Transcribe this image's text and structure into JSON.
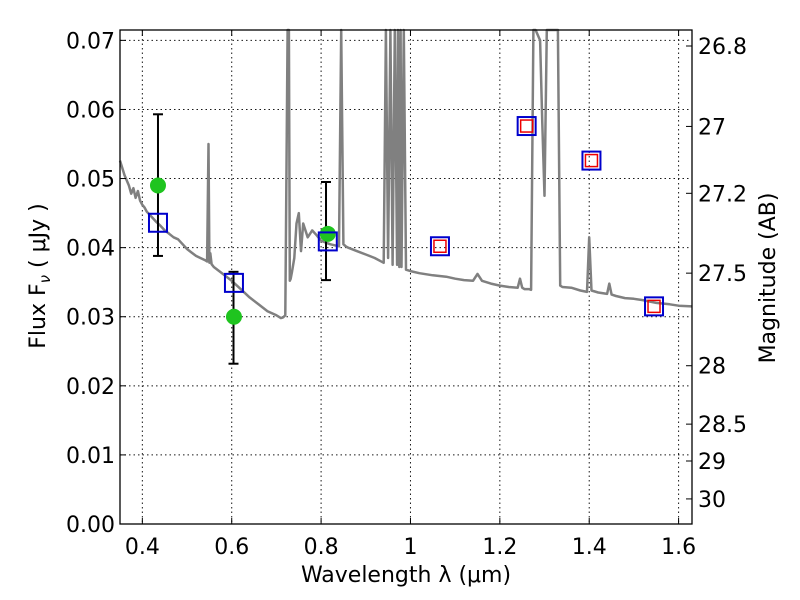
{
  "chart_data": {
    "type": "line",
    "xlabel": "Wavelength  λ (μm)",
    "ylabel": "Flux  F",
    "ylabel_sub": "ν",
    "ylabel_unit": " ( μJy )",
    "y2label": "Magnitude (AB)",
    "xlim": [
      0.35,
      1.63
    ],
    "ylim": [
      0.0,
      0.0715
    ],
    "grid": true,
    "x_ticks": [
      0.4,
      0.6,
      0.8,
      1.0,
      1.2,
      1.4,
      1.6
    ],
    "x_tick_labels": [
      "0.4",
      "0.6",
      "0.8",
      "1",
      "1.2",
      "1.4",
      "1.6"
    ],
    "y_ticks": [
      0.0,
      0.01,
      0.02,
      0.03,
      0.04,
      0.05,
      0.06,
      0.07
    ],
    "y_tick_labels": [
      "0.00",
      "0.01",
      "0.02",
      "0.03",
      "0.04",
      "0.05",
      "0.06",
      "0.07"
    ],
    "y2_tick_labels": [
      "26.8",
      "27",
      "27.2",
      "27.5",
      "28",
      "28.5",
      "29",
      "30"
    ],
    "y2_tick_magnitudes": [
      26.8,
      27.0,
      27.2,
      27.5,
      28.0,
      28.5,
      29.0,
      30.0
    ],
    "series": [
      {
        "kind": "spectrum",
        "color": "#808080",
        "x": [
          0.35,
          0.36,
          0.37,
          0.375,
          0.38,
          0.385,
          0.39,
          0.395,
          0.4,
          0.405,
          0.41,
          0.42,
          0.43,
          0.44,
          0.45,
          0.46,
          0.47,
          0.48,
          0.49,
          0.5,
          0.51,
          0.52,
          0.53,
          0.54,
          0.545,
          0.548,
          0.55,
          0.552,
          0.555,
          0.56,
          0.58,
          0.6,
          0.62,
          0.64,
          0.66,
          0.68,
          0.7,
          0.71,
          0.715,
          0.72,
          0.725,
          0.728,
          0.73,
          0.732,
          0.735,
          0.74,
          0.745,
          0.75,
          0.755,
          0.76,
          0.77,
          0.78,
          0.79,
          0.8,
          0.82,
          0.84,
          0.845,
          0.85,
          0.855,
          0.86,
          0.88,
          0.9,
          0.92,
          0.94,
          0.945,
          0.95,
          0.955,
          0.96,
          0.965,
          0.97,
          0.972,
          0.975,
          0.978,
          0.98,
          0.985,
          0.99,
          1.0,
          1.02,
          1.05,
          1.08,
          1.1,
          1.12,
          1.14,
          1.15,
          1.16,
          1.18,
          1.2,
          1.22,
          1.24,
          1.245,
          1.25,
          1.255,
          1.26,
          1.265,
          1.27,
          1.275,
          1.28,
          1.29,
          1.295,
          1.3,
          1.305,
          1.31,
          1.32,
          1.33,
          1.335,
          1.34,
          1.36,
          1.38,
          1.395,
          1.4,
          1.405,
          1.42,
          1.44,
          1.445,
          1.45,
          1.46,
          1.48,
          1.5,
          1.52,
          1.55,
          1.58,
          1.6,
          1.63
        ],
        "y": [
          0.0526,
          0.0505,
          0.049,
          0.0478,
          0.0486,
          0.0472,
          0.0482,
          0.0468,
          0.0462,
          0.0458,
          0.0452,
          0.0445,
          0.0438,
          0.0432,
          0.0425,
          0.042,
          0.0415,
          0.0412,
          0.0405,
          0.0398,
          0.0393,
          0.0388,
          0.0385,
          0.0382,
          0.038,
          0.055,
          0.0378,
          0.0392,
          0.0376,
          0.0372,
          0.0362,
          0.0352,
          0.034,
          0.0328,
          0.0318,
          0.0308,
          0.0302,
          0.0298,
          0.0299,
          0.0302,
          0.0715,
          0.0715,
          0.0352,
          0.0355,
          0.0365,
          0.0385,
          0.0435,
          0.045,
          0.0395,
          0.0435,
          0.0415,
          0.0425,
          0.0418,
          0.041,
          0.0405,
          0.0402,
          0.0715,
          0.0405,
          0.0402,
          0.04,
          0.0395,
          0.039,
          0.0385,
          0.0378,
          0.0715,
          0.0385,
          0.0715,
          0.0375,
          0.0715,
          0.0375,
          0.0715,
          0.0372,
          0.0715,
          0.0372,
          0.0715,
          0.0368,
          0.0366,
          0.0363,
          0.036,
          0.0358,
          0.0355,
          0.0353,
          0.0352,
          0.0362,
          0.0352,
          0.0348,
          0.0345,
          0.0343,
          0.0342,
          0.0355,
          0.0342,
          0.034,
          0.034,
          0.034,
          0.0339,
          0.0715,
          0.0715,
          0.07,
          0.058,
          0.0475,
          0.0715,
          0.0715,
          0.0715,
          0.0715,
          0.0345,
          0.0343,
          0.0342,
          0.0338,
          0.0336,
          0.0415,
          0.0338,
          0.0335,
          0.0333,
          0.0348,
          0.0332,
          0.033,
          0.0327,
          0.0326,
          0.0324,
          0.032,
          0.0318,
          0.0316,
          0.0315
        ]
      },
      {
        "kind": "observed-points",
        "color": "#1fc41f",
        "x": [
          0.435,
          0.605,
          0.815
        ],
        "y": [
          0.049,
          0.03,
          0.042
        ],
        "err_lo": [
          0.0388,
          0.0232,
          0.0353
        ],
        "err_hi": [
          0.0593,
          0.0365,
          0.0495
        ],
        "err_x": [
          0.435,
          0.604,
          0.811
        ]
      },
      {
        "kind": "model-photometry",
        "color": "#0000cc",
        "marker": "square",
        "x": [
          0.435,
          0.605,
          0.815,
          1.066,
          1.26,
          1.405,
          1.545
        ],
        "y": [
          0.0436,
          0.0349,
          0.0409,
          0.0402,
          0.0576,
          0.0526,
          0.0315
        ]
      },
      {
        "kind": "red-inner-markers",
        "color": "#ee0000",
        "marker": "square-small",
        "x": [
          1.066,
          1.26,
          1.405,
          1.545
        ],
        "y": [
          0.0402,
          0.0576,
          0.0526,
          0.0315
        ]
      }
    ]
  }
}
